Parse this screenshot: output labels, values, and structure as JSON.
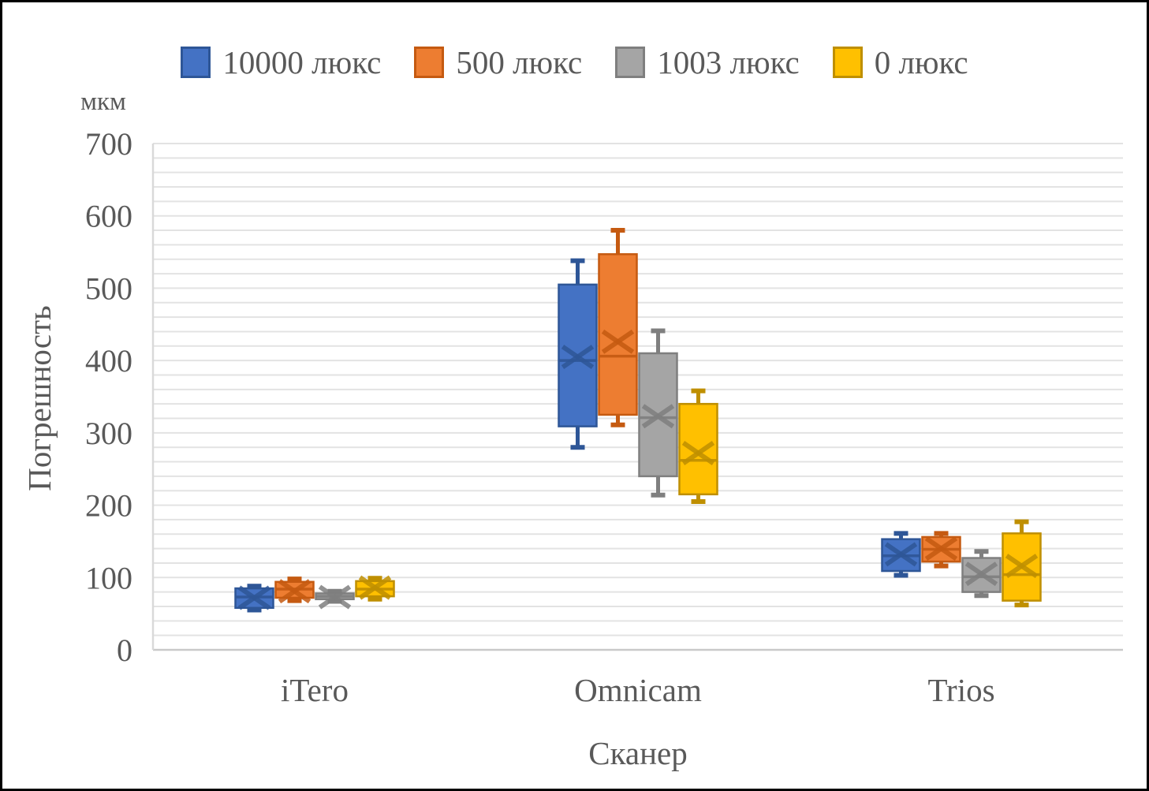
{
  "chart_data": {
    "type": "boxplot",
    "unit_label": "мкм",
    "ylabel": "Погрешность",
    "xlabel": "Сканер",
    "ylim": [
      0,
      700
    ],
    "y_major_tick": 100,
    "y_minor_grid": 20,
    "grid": "on",
    "legend_position": "top",
    "categories": [
      "iTero",
      "Omnicam",
      "Trios"
    ],
    "series": [
      {
        "name": "10000 люкс",
        "fill": "#4472C4",
        "stroke": "#2E5697",
        "boxes": [
          {
            "min": 55,
            "q1": 58,
            "median": 73,
            "mean": 72,
            "q3": 85,
            "max": 88
          },
          {
            "min": 280,
            "q1": 309,
            "median": 400,
            "mean": 405,
            "q3": 505,
            "max": 538
          },
          {
            "min": 103,
            "q1": 109,
            "median": 130,
            "mean": 132,
            "q3": 153,
            "max": 161
          }
        ]
      },
      {
        "name": "500 люкс",
        "fill": "#ED7D31",
        "stroke": "#C55A11",
        "boxes": [
          {
            "min": 68,
            "q1": 72,
            "median": 84,
            "mean": 81,
            "q3": 94,
            "max": 98
          },
          {
            "min": 311,
            "q1": 325,
            "median": 406,
            "mean": 426,
            "q3": 547,
            "max": 580
          },
          {
            "min": 116,
            "q1": 122,
            "median": 139,
            "mean": 140,
            "q3": 156,
            "max": 161
          }
        ]
      },
      {
        "name": "1003 люкс",
        "fill": "#A5A5A5",
        "stroke": "#7F7F7F",
        "boxes": [
          {
            "min": 67,
            "q1": 70,
            "median": 74,
            "mean": 73,
            "q3": 78,
            "max": 81
          },
          {
            "min": 214,
            "q1": 240,
            "median": 321,
            "mean": 323,
            "q3": 410,
            "max": 441
          },
          {
            "min": 75,
            "q1": 80,
            "median": 101,
            "mean": 105,
            "q3": 127,
            "max": 136
          }
        ]
      },
      {
        "name": "0 люкс",
        "fill": "#FFC000",
        "stroke": "#BF8F00",
        "boxes": [
          {
            "min": 70,
            "q1": 74,
            "median": 84,
            "mean": 86,
            "q3": 95,
            "max": 99
          },
          {
            "min": 205,
            "q1": 215,
            "median": 262,
            "mean": 272,
            "q3": 340,
            "max": 358
          },
          {
            "min": 62,
            "q1": 68,
            "median": 104,
            "mean": 116,
            "q3": 161,
            "max": 177
          }
        ]
      }
    ],
    "colors": {
      "gridline": "#E3E3E3",
      "axis_line": "#C9C9C9",
      "plot_border": "#D9D9D9",
      "text": "#595959"
    }
  }
}
